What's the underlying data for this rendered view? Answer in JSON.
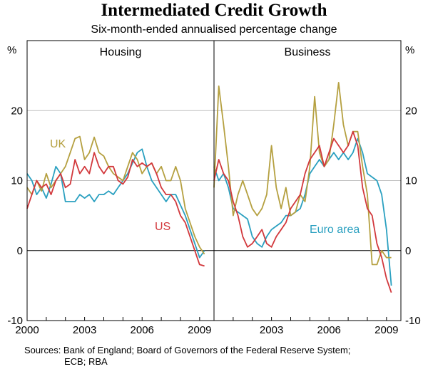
{
  "title": "Intermediated Credit Growth",
  "subtitle": "Six-month-ended annualised percentage change",
  "ylabel_left": "%",
  "ylabel_right": "%",
  "sources_line1": "Sources: Bank of England; Board of Governors of the Federal Reserve System;",
  "sources_line2": "ECB; RBA",
  "colors": {
    "uk": "#b5a040",
    "us": "#d2383c",
    "euro": "#2aa0c0",
    "grid": "#bfbfbf"
  },
  "chart_data": [
    {
      "type": "line",
      "panel": "Housing",
      "title": "Housing",
      "xlim": [
        2000,
        2009.75
      ],
      "ylim": [
        -10,
        30
      ],
      "yticks": [
        -10,
        0,
        10,
        20
      ],
      "xtick_labels": [
        "2000",
        "2003",
        "2006",
        "2009"
      ],
      "series": [
        {
          "key": "uk",
          "name": "UK",
          "x": [
            2000.0,
            2000.25,
            2000.5,
            2000.75,
            2001.0,
            2001.25,
            2001.5,
            2001.75,
            2002.0,
            2002.25,
            2002.5,
            2002.75,
            2003.0,
            2003.25,
            2003.5,
            2003.75,
            2004.0,
            2004.25,
            2004.5,
            2004.75,
            2005.0,
            2005.25,
            2005.5,
            2005.75,
            2006.0,
            2006.25,
            2006.5,
            2006.75,
            2007.0,
            2007.25,
            2007.5,
            2007.75,
            2008.0,
            2008.25,
            2008.5,
            2008.75,
            2009.0,
            2009.25
          ],
          "values": [
            9,
            8,
            10,
            8.5,
            11,
            9,
            10,
            11,
            12,
            14,
            16,
            16.3,
            13,
            14,
            16.2,
            14,
            13.5,
            12,
            11,
            10.5,
            10,
            12,
            14,
            13,
            11,
            12,
            12.5,
            11,
            12,
            10,
            10,
            12,
            10,
            6,
            4,
            2,
            0.5,
            -0.5
          ]
        },
        {
          "key": "us",
          "name": "US",
          "x": [
            2000.0,
            2000.25,
            2000.5,
            2000.75,
            2001.0,
            2001.25,
            2001.5,
            2001.75,
            2002.0,
            2002.25,
            2002.5,
            2002.75,
            2003.0,
            2003.25,
            2003.5,
            2003.75,
            2004.0,
            2004.25,
            2004.5,
            2004.75,
            2005.0,
            2005.25,
            2005.5,
            2005.75,
            2006.0,
            2006.25,
            2006.5,
            2006.75,
            2007.0,
            2007.25,
            2007.5,
            2007.75,
            2008.0,
            2008.25,
            2008.5,
            2008.75,
            2009.0,
            2009.25
          ],
          "values": [
            6,
            8,
            10,
            9,
            9.5,
            8,
            10,
            11,
            9,
            9.5,
            13,
            11,
            12,
            11,
            14,
            12,
            11,
            12,
            12,
            10,
            9.5,
            10.5,
            13,
            12,
            12.5,
            12,
            12.5,
            11,
            9,
            8,
            8,
            7,
            5,
            4,
            2,
            0,
            -2,
            -2.2
          ]
        },
        {
          "key": "euro",
          "name": "Euro area",
          "x": [
            2000.0,
            2000.25,
            2000.5,
            2000.75,
            2001.0,
            2001.25,
            2001.5,
            2001.75,
            2002.0,
            2002.25,
            2002.5,
            2002.75,
            2003.0,
            2003.25,
            2003.5,
            2003.75,
            2004.0,
            2004.25,
            2004.5,
            2004.75,
            2005.0,
            2005.25,
            2005.5,
            2005.75,
            2006.0,
            2006.25,
            2006.5,
            2006.75,
            2007.0,
            2007.25,
            2007.5,
            2007.75,
            2008.0,
            2008.25,
            2008.5,
            2008.75,
            2009.0,
            2009.25
          ],
          "values": [
            11,
            10,
            8,
            9,
            7.5,
            9.5,
            12,
            11,
            7,
            7,
            7,
            8,
            7.5,
            8,
            7,
            8,
            8,
            8.5,
            8,
            9,
            10,
            11,
            12.5,
            14,
            14.5,
            12,
            10,
            9,
            8,
            7,
            8,
            8,
            6.5,
            5,
            3,
            1,
            -1,
            0
          ]
        }
      ]
    },
    {
      "type": "line",
      "panel": "Business",
      "title": "Business",
      "xlim": [
        2000,
        2009.75
      ],
      "ylim": [
        -10,
        30
      ],
      "yticks": [
        -10,
        0,
        10,
        20
      ],
      "xtick_labels": [
        "2003",
        "2006",
        "2009"
      ],
      "series": [
        {
          "key": "uk",
          "name": "UK",
          "x": [
            2000.0,
            2000.25,
            2000.5,
            2000.75,
            2001.0,
            2001.25,
            2001.5,
            2001.75,
            2002.0,
            2002.25,
            2002.5,
            2002.75,
            2003.0,
            2003.25,
            2003.5,
            2003.75,
            2004.0,
            2004.25,
            2004.5,
            2004.75,
            2005.0,
            2005.25,
            2005.5,
            2005.75,
            2006.0,
            2006.25,
            2006.5,
            2006.75,
            2007.0,
            2007.25,
            2007.5,
            2007.75,
            2008.0,
            2008.25,
            2008.5,
            2008.75,
            2009.0,
            2009.25
          ],
          "values": [
            9,
            23.5,
            18,
            12,
            5,
            8,
            10,
            8,
            6,
            5,
            6,
            8,
            15,
            9,
            6,
            9,
            5,
            5.5,
            8,
            7,
            12,
            22,
            14,
            12,
            13,
            18,
            24,
            18,
            15,
            17,
            17,
            12,
            8,
            -2,
            -2,
            0,
            -1,
            -1
          ]
        },
        {
          "key": "us",
          "name": "US",
          "x": [
            2000.0,
            2000.25,
            2000.5,
            2000.75,
            2001.0,
            2001.25,
            2001.5,
            2001.75,
            2002.0,
            2002.25,
            2002.5,
            2002.75,
            2003.0,
            2003.25,
            2003.5,
            2003.75,
            2004.0,
            2004.25,
            2004.5,
            2004.75,
            2005.0,
            2005.25,
            2005.5,
            2005.75,
            2006.0,
            2006.25,
            2006.5,
            2006.75,
            2007.0,
            2007.25,
            2007.5,
            2007.75,
            2008.0,
            2008.25,
            2008.5,
            2008.75,
            2009.0,
            2009.25
          ],
          "values": [
            10,
            13,
            11,
            10,
            7,
            5,
            2,
            0.5,
            1,
            2,
            3,
            1,
            0.5,
            2,
            3,
            4,
            6,
            7,
            8,
            11,
            13,
            14,
            15,
            12,
            14,
            16,
            15,
            14,
            15,
            17,
            15,
            9,
            6,
            5,
            1,
            -1,
            -4,
            -6
          ]
        },
        {
          "key": "euro",
          "name": "Euro area",
          "x": [
            2000.0,
            2000.25,
            2000.5,
            2000.75,
            2001.0,
            2001.25,
            2001.5,
            2001.75,
            2002.0,
            2002.25,
            2002.5,
            2002.75,
            2003.0,
            2003.25,
            2003.5,
            2003.75,
            2004.0,
            2004.25,
            2004.5,
            2004.75,
            2005.0,
            2005.25,
            2005.5,
            2005.75,
            2006.0,
            2006.25,
            2006.5,
            2006.75,
            2007.0,
            2007.25,
            2007.5,
            2007.75,
            2008.0,
            2008.25,
            2008.5,
            2008.75,
            2009.0,
            2009.25
          ],
          "values": [
            12,
            10,
            11,
            9,
            6,
            5.5,
            5,
            4.5,
            2,
            1,
            0.5,
            2,
            3,
            3.5,
            4,
            5,
            5,
            5.5,
            6,
            8,
            11,
            12,
            13,
            12,
            13,
            14,
            13,
            14,
            13,
            14,
            16,
            14,
            11,
            10.5,
            10,
            8,
            3,
            -5
          ]
        }
      ]
    }
  ]
}
